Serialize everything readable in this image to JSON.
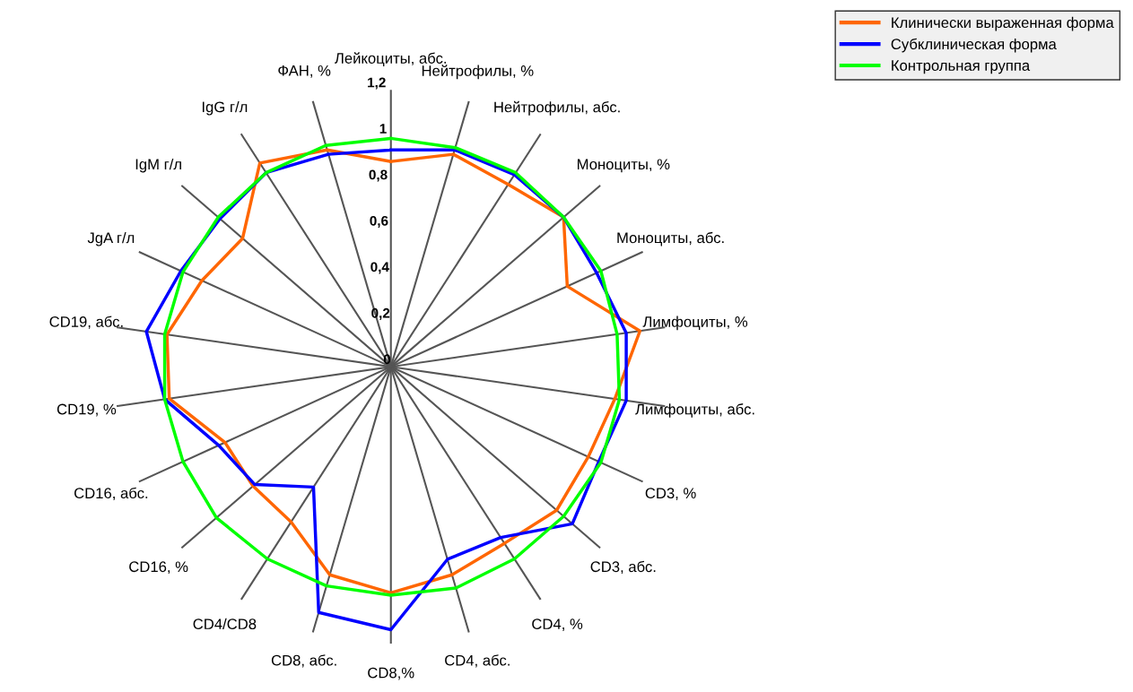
{
  "chart_data": {
    "type": "radar",
    "categories": [
      "Лейкоциты, абс.",
      "Нейтрофилы, %",
      "Нейтрофилы, абс.",
      "Моноциты, %",
      "Моноциты, абс.",
      "Лимфоциты, %",
      "Лимфоциты, абс.",
      "CD3, %",
      "CD3, абс.",
      "CD4, %",
      "CD4, абс.",
      "CD8,%",
      "CD8, абс.",
      "CD4/CD8",
      "CD16, %",
      "CD16, абс.",
      "CD19, %",
      "CD19, абс.",
      "JgA г/л",
      "IgM г/л",
      "IgG г/л",
      "ФАН, %"
    ],
    "series": [
      {
        "name": "Клинически выраженная форма",
        "color": "#ff6600",
        "values": [
          0.89,
          0.96,
          0.94,
          0.99,
          0.84,
          1.09,
          0.98,
          0.94,
          0.95,
          0.91,
          0.94,
          0.98,
          0.94,
          0.8,
          0.79,
          0.79,
          0.97,
          0.98,
          0.9,
          0.85,
          1.05,
          0.98
        ]
      },
      {
        "name": "Субклиническая форма",
        "color": "#0000ff",
        "values": [
          0.94,
          0.98,
          0.99,
          0.99,
          0.98,
          1.03,
          1.03,
          0.99,
          1.04,
          0.88,
          0.87,
          1.14,
          1.11,
          0.62,
          0.78,
          0.82,
          0.99,
          1.07,
          1.0,
          0.98,
          1.0,
          0.96
        ]
      },
      {
        "name": "Контрольная группа",
        "color": "#00ff00",
        "values": [
          0.99,
          0.99,
          1.0,
          0.99,
          1.0,
          0.99,
          1.0,
          1.0,
          0.99,
          0.99,
          1.0,
          0.99,
          0.99,
          0.99,
          1.0,
          0.99,
          0.99,
          0.99,
          0.99,
          0.99,
          1.0,
          1.0
        ]
      }
    ],
    "ylim": [
      0,
      1.2
    ],
    "yticks": [
      0,
      {
        "value": 0.2,
        "label": "0,2"
      },
      {
        "value": 0.4,
        "label": "0,4"
      },
      {
        "value": 0.6,
        "label": "0,6"
      },
      {
        "value": 0.8,
        "label": "0,8"
      },
      1,
      {
        "value": 1.2,
        "label": "1,2"
      }
    ],
    "grid": "x",
    "legend": "top right",
    "marker": "none",
    "line_style": "solid"
  }
}
